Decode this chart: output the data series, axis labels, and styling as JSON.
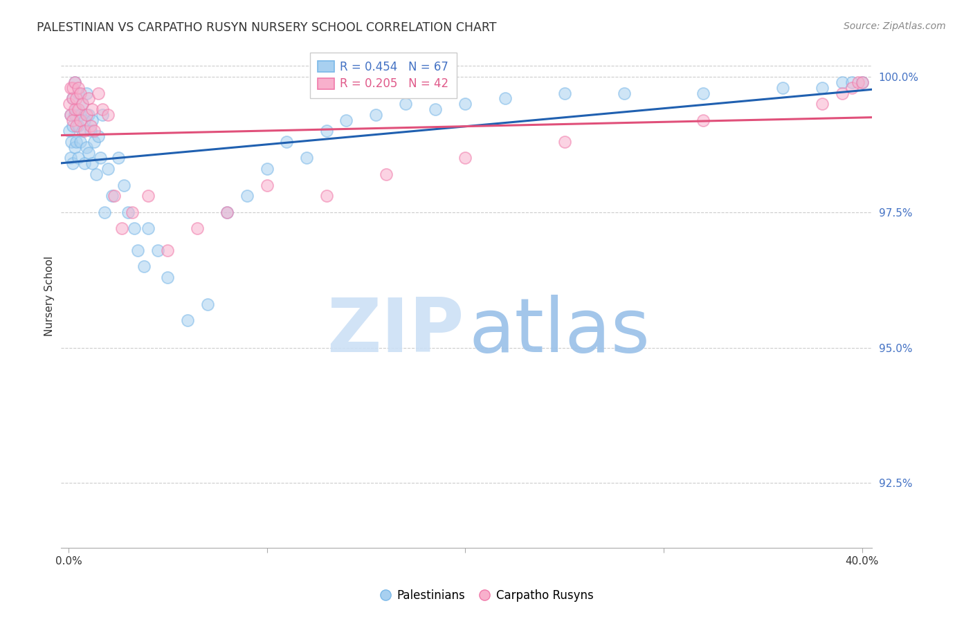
{
  "title": "PALESTINIAN VS CARPATHO RUSYN NURSERY SCHOOL CORRELATION CHART",
  "source": "Source: ZipAtlas.com",
  "ylabel": "Nursery School",
  "ytick_labels": [
    "100.0%",
    "97.5%",
    "95.0%",
    "92.5%"
  ],
  "ytick_values": [
    1.0,
    0.975,
    0.95,
    0.925
  ],
  "xlim_min": -0.004,
  "xlim_max": 0.405,
  "ylim_min": 0.913,
  "ylim_max": 1.006,
  "top_gridline": 1.002,
  "palestinians_color_edge": "#7ab8e8",
  "palestinians_color_face": "#a8d0f0",
  "carpatho_color_edge": "#f07aaa",
  "carpatho_color_face": "#f8b0cc",
  "palestinians_trend_color": "#2060b0",
  "carpatho_trend_color": "#e0507a",
  "watermark_zip_color": "#cce0f5",
  "watermark_atlas_color": "#99c0e8",
  "title_color": "#333333",
  "source_color": "#888888",
  "ytick_color": "#4472c4",
  "xtick_color": "#333333",
  "grid_color": "#cccccc",
  "legend_text_color_blue": "#4472c4",
  "legend_text_color_pink": "#e05a8a",
  "legend_entry_1": "R = 0.454   N = 67",
  "legend_entry_2": "R = 0.205   N = 42",
  "bottom_legend_1": "Palestinians",
  "bottom_legend_2": "Carpatho Rusyns",
  "pal_x": [
    0.0005,
    0.001,
    0.001,
    0.0015,
    0.002,
    0.002,
    0.002,
    0.003,
    0.003,
    0.003,
    0.004,
    0.004,
    0.005,
    0.005,
    0.005,
    0.006,
    0.006,
    0.007,
    0.007,
    0.008,
    0.008,
    0.009,
    0.009,
    0.01,
    0.01,
    0.011,
    0.012,
    0.012,
    0.013,
    0.014,
    0.015,
    0.016,
    0.017,
    0.018,
    0.02,
    0.022,
    0.025,
    0.028,
    0.03,
    0.033,
    0.035,
    0.038,
    0.04,
    0.045,
    0.05,
    0.06,
    0.07,
    0.08,
    0.09,
    0.1,
    0.11,
    0.12,
    0.13,
    0.14,
    0.155,
    0.17,
    0.185,
    0.2,
    0.22,
    0.25,
    0.28,
    0.32,
    0.36,
    0.38,
    0.39,
    0.395,
    0.4
  ],
  "pal_y": [
    0.99,
    0.985,
    0.993,
    0.988,
    0.996,
    0.991,
    0.984,
    0.993,
    0.987,
    0.999,
    0.994,
    0.988,
    0.997,
    0.991,
    0.985,
    0.993,
    0.988,
    0.995,
    0.99,
    0.984,
    0.992,
    0.987,
    0.997,
    0.993,
    0.986,
    0.99,
    0.984,
    0.992,
    0.988,
    0.982,
    0.989,
    0.985,
    0.993,
    0.975,
    0.983,
    0.978,
    0.985,
    0.98,
    0.975,
    0.972,
    0.968,
    0.965,
    0.972,
    0.968,
    0.963,
    0.955,
    0.958,
    0.975,
    0.978,
    0.983,
    0.988,
    0.985,
    0.99,
    0.992,
    0.993,
    0.995,
    0.994,
    0.995,
    0.996,
    0.997,
    0.997,
    0.997,
    0.998,
    0.998,
    0.999,
    0.999,
    0.999
  ],
  "car_x": [
    0.0005,
    0.001,
    0.001,
    0.002,
    0.002,
    0.002,
    0.003,
    0.003,
    0.004,
    0.004,
    0.005,
    0.005,
    0.006,
    0.006,
    0.007,
    0.008,
    0.009,
    0.01,
    0.011,
    0.012,
    0.013,
    0.015,
    0.017,
    0.02,
    0.023,
    0.027,
    0.032,
    0.04,
    0.05,
    0.065,
    0.08,
    0.1,
    0.13,
    0.16,
    0.2,
    0.25,
    0.32,
    0.38,
    0.39,
    0.395,
    0.398,
    0.4
  ],
  "car_y": [
    0.995,
    0.993,
    0.998,
    0.996,
    0.992,
    0.998,
    0.994,
    0.999,
    0.996,
    0.991,
    0.998,
    0.994,
    0.997,
    0.992,
    0.995,
    0.99,
    0.993,
    0.996,
    0.991,
    0.994,
    0.99,
    0.997,
    0.994,
    0.993,
    0.978,
    0.972,
    0.975,
    0.978,
    0.968,
    0.972,
    0.975,
    0.98,
    0.978,
    0.982,
    0.985,
    0.988,
    0.992,
    0.995,
    0.997,
    0.998,
    0.999,
    0.999
  ]
}
